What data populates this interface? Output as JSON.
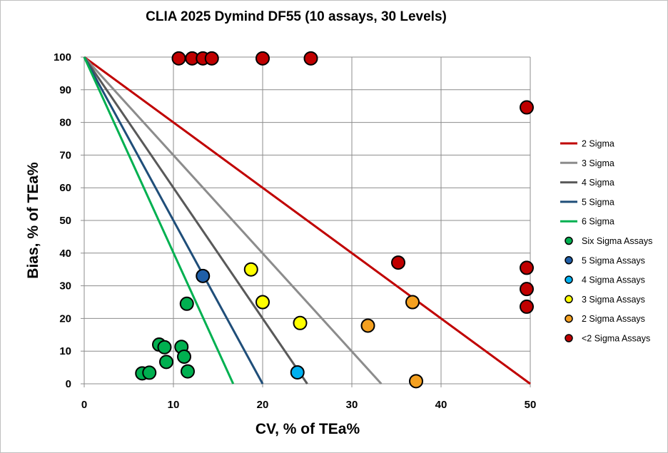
{
  "chart_data": {
    "type": "scatter",
    "title": "CLIA 2025 Dymind DF55 (10 assays, 30 Levels)",
    "xlabel": "CV, % of TEa%",
    "ylabel": "Bias, % of TEa%",
    "xlim": [
      0,
      50
    ],
    "ylim": [
      0,
      100
    ],
    "x_ticks": [
      "0",
      "10",
      "20",
      "30",
      "40",
      "50"
    ],
    "y_ticks": [
      "0",
      "10",
      "20",
      "30",
      "40",
      "50",
      "60",
      "70",
      "80",
      "90",
      "100"
    ],
    "grid": true,
    "legend_position": "right",
    "lines": [
      {
        "name": "2 Sigma",
        "color": "#c00000",
        "x": [
          0,
          50
        ],
        "y": [
          100,
          0
        ]
      },
      {
        "name": "3 Sigma",
        "color": "#8c8c8c",
        "x": [
          0,
          33.3
        ],
        "y": [
          100,
          0
        ]
      },
      {
        "name": "4 Sigma",
        "color": "#595959",
        "x": [
          0,
          25
        ],
        "y": [
          100,
          0
        ]
      },
      {
        "name": "5 Sigma",
        "color": "#1f4e79",
        "x": [
          0,
          20
        ],
        "y": [
          100,
          0
        ]
      },
      {
        "name": "6 Sigma",
        "color": "#00b050",
        "x": [
          0,
          16.7
        ],
        "y": [
          100,
          0
        ]
      }
    ],
    "series": [
      {
        "name": "Six Sigma Assays",
        "color": "#00b050",
        "x": [
          6.5,
          7.3,
          8.4,
          9.0,
          9.2,
          10.9,
          11.2,
          11.6,
          11.5
        ],
        "y": [
          3.2,
          3.4,
          12.0,
          11.2,
          6.7,
          11.3,
          8.3,
          3.8,
          24.5
        ]
      },
      {
        "name": "5 Sigma Assays",
        "color": "#1f5fa8",
        "x": [
          13.3
        ],
        "y": [
          33.0
        ]
      },
      {
        "name": "4 Sigma Assays",
        "color": "#00b0f0",
        "x": [
          23.9
        ],
        "y": [
          3.5
        ]
      },
      {
        "name": "3 Sigma Assays",
        "color": "#ffff00",
        "x": [
          18.7,
          20.0,
          24.2
        ],
        "y": [
          35.0,
          25.0,
          18.6
        ]
      },
      {
        "name": "2 Sigma Assays",
        "color": "#f4a020",
        "x": [
          31.8,
          36.8,
          37.2
        ],
        "y": [
          17.8,
          25.0,
          0.8
        ]
      },
      {
        "name": "<2 Sigma Assays",
        "color": "#c00000",
        "x": [
          10.6,
          12.1,
          13.3,
          14.3,
          20.0,
          25.4,
          49.6,
          49.6,
          49.6,
          49.6,
          35.2
        ],
        "y": [
          99.6,
          99.6,
          99.6,
          99.6,
          99.6,
          99.6,
          84.6,
          35.5,
          29.0,
          23.6,
          37.1
        ]
      }
    ]
  }
}
